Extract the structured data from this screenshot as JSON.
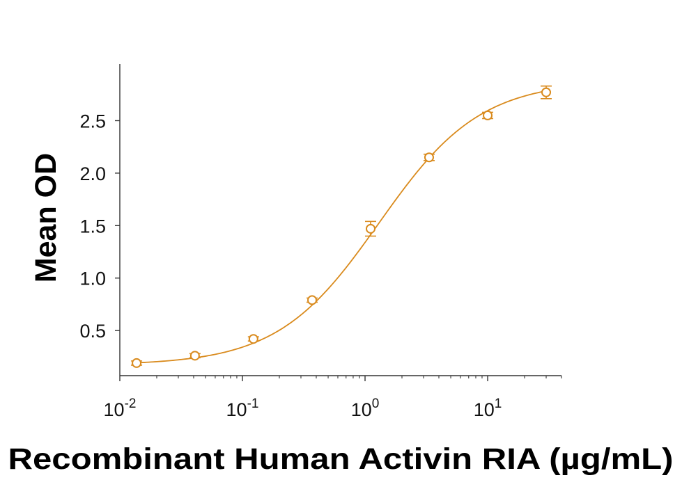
{
  "chart_data": {
    "type": "scatter",
    "title": "",
    "xlabel": "Recombinant Human Activin RIA (µg/mL)",
    "ylabel": "Mean OD",
    "x_scale": "log",
    "xlim": [
      0.01,
      40
    ],
    "ylim": [
      0.07,
      3.04
    ],
    "x_ticks": [
      {
        "value": 0.01,
        "base": "10",
        "exp": "-2"
      },
      {
        "value": 0.1,
        "base": "10",
        "exp": "-1"
      },
      {
        "value": 1,
        "base": "10",
        "exp": "0"
      },
      {
        "value": 10,
        "base": "10",
        "exp": "1"
      }
    ],
    "y_ticks": [
      {
        "value": 0.5,
        "label": "0.5"
      },
      {
        "value": 1.0,
        "label": "1.0"
      },
      {
        "value": 1.5,
        "label": "1.5"
      },
      {
        "value": 2.0,
        "label": "2.0"
      },
      {
        "value": 2.5,
        "label": "2.5"
      }
    ],
    "grid": false,
    "legend": "none",
    "series": [
      {
        "color": "#d98a1c",
        "marker": "open-circle",
        "fit": "4-parameter logistic",
        "points": [
          {
            "x": 0.0137,
            "y": 0.19,
            "err": 0.02
          },
          {
            "x": 0.041,
            "y": 0.26,
            "err": 0.02
          },
          {
            "x": 0.123,
            "y": 0.42,
            "err": 0.02
          },
          {
            "x": 0.37,
            "y": 0.79,
            "err": 0.02
          },
          {
            "x": 1.11,
            "y": 1.47,
            "err": 0.07
          },
          {
            "x": 3.33,
            "y": 2.15,
            "err": 0.03
          },
          {
            "x": 10.0,
            "y": 2.55,
            "err": 0.03
          },
          {
            "x": 30.0,
            "y": 2.77,
            "err": 0.06
          }
        ],
        "fit_params": {
          "bottom": 0.17,
          "top": 2.88,
          "ec50": 1.3,
          "hill": 1.05
        }
      }
    ]
  }
}
